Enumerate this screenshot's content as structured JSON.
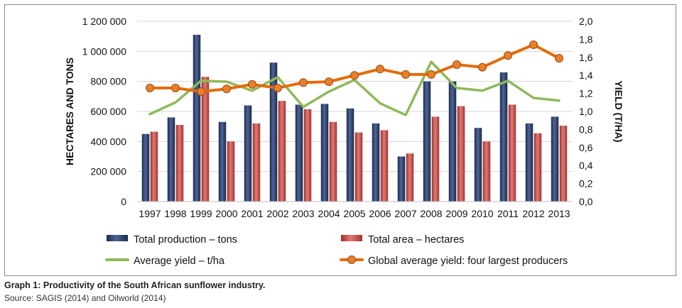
{
  "chart_data": {
    "type": "bar",
    "categories": [
      "1997",
      "1998",
      "1999",
      "2000",
      "2001",
      "2002",
      "2003",
      "2004",
      "2005",
      "2006",
      "2007",
      "2008",
      "2009",
      "2010",
      "2011",
      "2012",
      "2013"
    ],
    "series": [
      {
        "name": "Total production – tons",
        "kind": "bar",
        "axis": "left",
        "color": "#2a3d66",
        "values": [
          450000,
          560000,
          1110000,
          530000,
          640000,
          925000,
          645000,
          650000,
          620000,
          520000,
          300000,
          800000,
          800000,
          490000,
          860000,
          520000,
          565000
        ]
      },
      {
        "name": "Total area – hectares",
        "kind": "bar",
        "axis": "left",
        "color": "#c0504d",
        "values": [
          465000,
          510000,
          830000,
          400000,
          520000,
          670000,
          615000,
          530000,
          460000,
          475000,
          320000,
          565000,
          635000,
          400000,
          645000,
          455000,
          505000
        ]
      },
      {
        "name": "Average yield – t/ha",
        "kind": "line",
        "axis": "right",
        "color": "#8fb95a",
        "values": [
          0.97,
          1.1,
          1.34,
          1.33,
          1.23,
          1.38,
          1.05,
          1.22,
          1.35,
          1.09,
          0.96,
          1.55,
          1.26,
          1.23,
          1.34,
          1.15,
          1.12
        ]
      },
      {
        "name": "Global average yield: four largest producers",
        "kind": "line",
        "axis": "right",
        "color": "#e46c0a",
        "markers": true,
        "values": [
          1.26,
          1.26,
          1.22,
          1.25,
          1.3,
          1.26,
          1.32,
          1.33,
          1.4,
          1.47,
          1.41,
          1.41,
          1.52,
          1.49,
          1.62,
          1.74,
          1.59
        ]
      }
    ],
    "ylabel": "HECTARES AND TONS",
    "ylabel_right": "YIELD (T/HA)",
    "ylim": [
      0,
      1200000
    ],
    "ylim_right": [
      0,
      2.0
    ],
    "yticks": [
      "0",
      "200 000",
      "400 000",
      "600 000",
      "800 000",
      "1 000 000",
      "1 200 000"
    ],
    "yticks_right": [
      "0,0",
      "0,2",
      "0,4",
      "0,6",
      "0,8",
      "1,0",
      "1,2",
      "1,4",
      "1,6",
      "1,8",
      "2,0"
    ],
    "grid": true,
    "legend_position": "bottom"
  },
  "caption": "Graph 1: Productivity of the South African sunflower industry.",
  "source": "Source: SAGIS (2014) and Oilworld (2014)"
}
